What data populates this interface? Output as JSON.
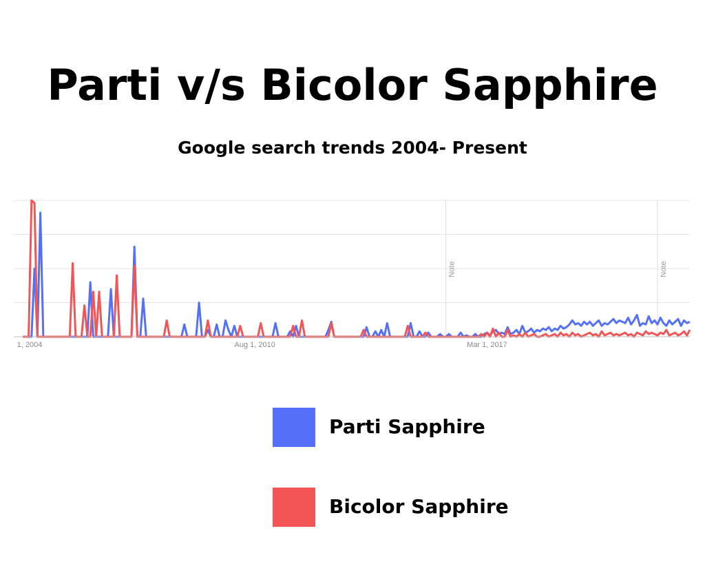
{
  "chart_data": {
    "type": "line",
    "title": "Parti v/s Bicolor Sapphire",
    "subtitle": "Google search trends 2004- Present",
    "categories": [
      "1, 2004",
      null,
      null,
      null,
      null,
      null,
      null,
      null,
      null,
      null,
      null,
      null,
      null,
      null,
      null,
      null,
      null,
      null,
      null,
      null,
      null,
      null,
      null,
      null,
      null,
      null,
      null,
      null,
      null,
      null,
      null,
      null,
      null,
      null,
      null,
      null,
      null,
      null,
      null,
      null,
      null,
      null,
      null,
      null,
      null,
      null,
      null,
      null,
      null,
      null,
      null,
      null,
      null,
      null,
      null,
      null,
      null,
      null,
      null,
      null,
      null,
      null,
      null,
      null,
      null,
      null,
      null,
      null,
      null,
      null,
      null,
      null,
      null,
      null,
      null,
      null,
      null,
      null,
      null,
      "Aug 1, 2010",
      null,
      null,
      null,
      null,
      null,
      null,
      null,
      null,
      null,
      null,
      null,
      null,
      null,
      null,
      null,
      null,
      null,
      null,
      null,
      null,
      null,
      null,
      null,
      null,
      null,
      null,
      null,
      null,
      null,
      null,
      null,
      null,
      null,
      null,
      null,
      null,
      null,
      null,
      null,
      null,
      null,
      null,
      null,
      null,
      null,
      null,
      null,
      null,
      null,
      null,
      null,
      null,
      null,
      null,
      null,
      null,
      null,
      null,
      null,
      null,
      null,
      null,
      null,
      null,
      null,
      null,
      null,
      null,
      null,
      null,
      null,
      null,
      null,
      null,
      null,
      null,
      null,
      null,
      "Mar 1, 2017",
      null,
      null,
      null,
      null,
      null,
      null,
      null,
      null,
      null,
      null,
      null,
      null,
      null,
      null,
      null,
      null,
      null,
      null,
      null,
      null,
      null,
      null,
      null,
      null,
      null,
      null,
      null,
      null,
      null,
      null,
      null,
      null,
      null,
      null,
      null,
      null,
      null,
      null,
      null,
      null,
      null,
      null,
      null,
      null,
      null,
      null,
      null,
      null,
      null,
      null,
      null,
      null,
      null,
      null,
      null,
      null,
      null,
      null,
      null,
      null,
      null,
      null,
      null,
      null,
      null,
      null,
      null,
      null,
      null
    ],
    "series": [
      {
        "name": "Parti Sapphire",
        "color": "#5470f8",
        "values": [
          0,
          0,
          0,
          0,
          50,
          0,
          91,
          0,
          0,
          0,
          0,
          0,
          0,
          0,
          0,
          0,
          0,
          0,
          0,
          0,
          0,
          0,
          0,
          40,
          0,
          0,
          0,
          0,
          0,
          0,
          35,
          0,
          0,
          0,
          0,
          0,
          0,
          0,
          66,
          0,
          0,
          28,
          0,
          0,
          0,
          0,
          0,
          0,
          0,
          0,
          0,
          0,
          0,
          0,
          0,
          9,
          0,
          0,
          0,
          0,
          25,
          0,
          0,
          5,
          0,
          0,
          9,
          0,
          0,
          12,
          5,
          0,
          8,
          0,
          0,
          0,
          0,
          0,
          0,
          0,
          0,
          0,
          0,
          0,
          0,
          0,
          10,
          0,
          0,
          0,
          0,
          4,
          0,
          8,
          0,
          0,
          0,
          0,
          0,
          0,
          0,
          0,
          0,
          0,
          5,
          11,
          0,
          0,
          0,
          0,
          0,
          0,
          0,
          0,
          0,
          0,
          0,
          7,
          0,
          0,
          4,
          0,
          5,
          0,
          10,
          0,
          0,
          0,
          0,
          0,
          0,
          0,
          10,
          0,
          0,
          4,
          0,
          0,
          3,
          0,
          0,
          0,
          2,
          0,
          0,
          2,
          0,
          0,
          0,
          3,
          0,
          1,
          0,
          0,
          2,
          0,
          0,
          2,
          3,
          1,
          4,
          5,
          2,
          3,
          2,
          7,
          2,
          3,
          5,
          2,
          8,
          3,
          4,
          6,
          3,
          5,
          4,
          6,
          5,
          7,
          4,
          6,
          5,
          8,
          6,
          7,
          9,
          12,
          9,
          10,
          8,
          11,
          9,
          11,
          8,
          10,
          12,
          8,
          10,
          9,
          11,
          13,
          10,
          12,
          11,
          10,
          14,
          9,
          12,
          16,
          8,
          10,
          9,
          15,
          10,
          12,
          9,
          14,
          10,
          8,
          12,
          9,
          11,
          13,
          8,
          12,
          10,
          11
        ]
      },
      {
        "name": "Bicolor Sapphire",
        "color": "#f25555",
        "values": [
          0,
          0,
          0,
          100,
          98,
          0,
          0,
          0,
          0,
          0,
          0,
          0,
          0,
          0,
          0,
          0,
          0,
          54,
          0,
          0,
          0,
          23,
          0,
          0,
          33,
          0,
          33,
          0,
          0,
          0,
          0,
          0,
          45,
          0,
          0,
          0,
          0,
          0,
          52,
          0,
          0,
          0,
          0,
          0,
          0,
          0,
          0,
          0,
          0,
          12,
          0,
          0,
          0,
          0,
          0,
          0,
          0,
          0,
          0,
          0,
          0,
          0,
          0,
          12,
          0,
          0,
          0,
          0,
          0,
          0,
          0,
          0,
          0,
          0,
          8,
          0,
          0,
          0,
          0,
          0,
          0,
          10,
          0,
          0,
          0,
          0,
          0,
          0,
          0,
          0,
          0,
          0,
          8,
          0,
          0,
          12,
          0,
          0,
          0,
          0,
          0,
          0,
          0,
          0,
          0,
          10,
          0,
          0,
          0,
          0,
          0,
          0,
          0,
          0,
          0,
          0,
          5,
          0,
          0,
          0,
          0,
          0,
          0,
          0,
          0,
          0,
          0,
          0,
          0,
          0,
          0,
          8,
          0,
          0,
          0,
          0,
          0,
          3,
          0,
          0,
          0,
          0,
          0,
          0,
          0,
          0,
          0,
          0,
          0,
          0,
          0,
          0,
          0,
          0,
          0,
          0,
          2,
          0,
          3,
          0,
          6,
          0,
          3,
          0,
          0,
          5,
          0,
          1,
          0,
          2,
          0,
          3,
          0,
          1,
          2,
          0,
          0,
          1,
          2,
          0,
          1,
          2,
          0,
          3,
          1,
          2,
          0,
          3,
          1,
          2,
          0,
          1,
          2,
          3,
          1,
          2,
          0,
          4,
          1,
          2,
          3,
          1,
          2,
          1,
          2,
          3,
          1,
          2,
          0,
          3,
          2,
          1,
          4,
          2,
          3,
          2,
          1,
          3,
          2,
          5,
          1,
          2,
          3,
          1,
          2,
          4,
          1,
          5
        ]
      }
    ],
    "annotations": [
      {
        "text": "Note",
        "index": 144
      },
      {
        "text": "Note",
        "index": 216
      }
    ],
    "ylim": [
      0,
      100
    ],
    "yticks": [
      0,
      25,
      50,
      75,
      100
    ],
    "grid": true
  }
}
